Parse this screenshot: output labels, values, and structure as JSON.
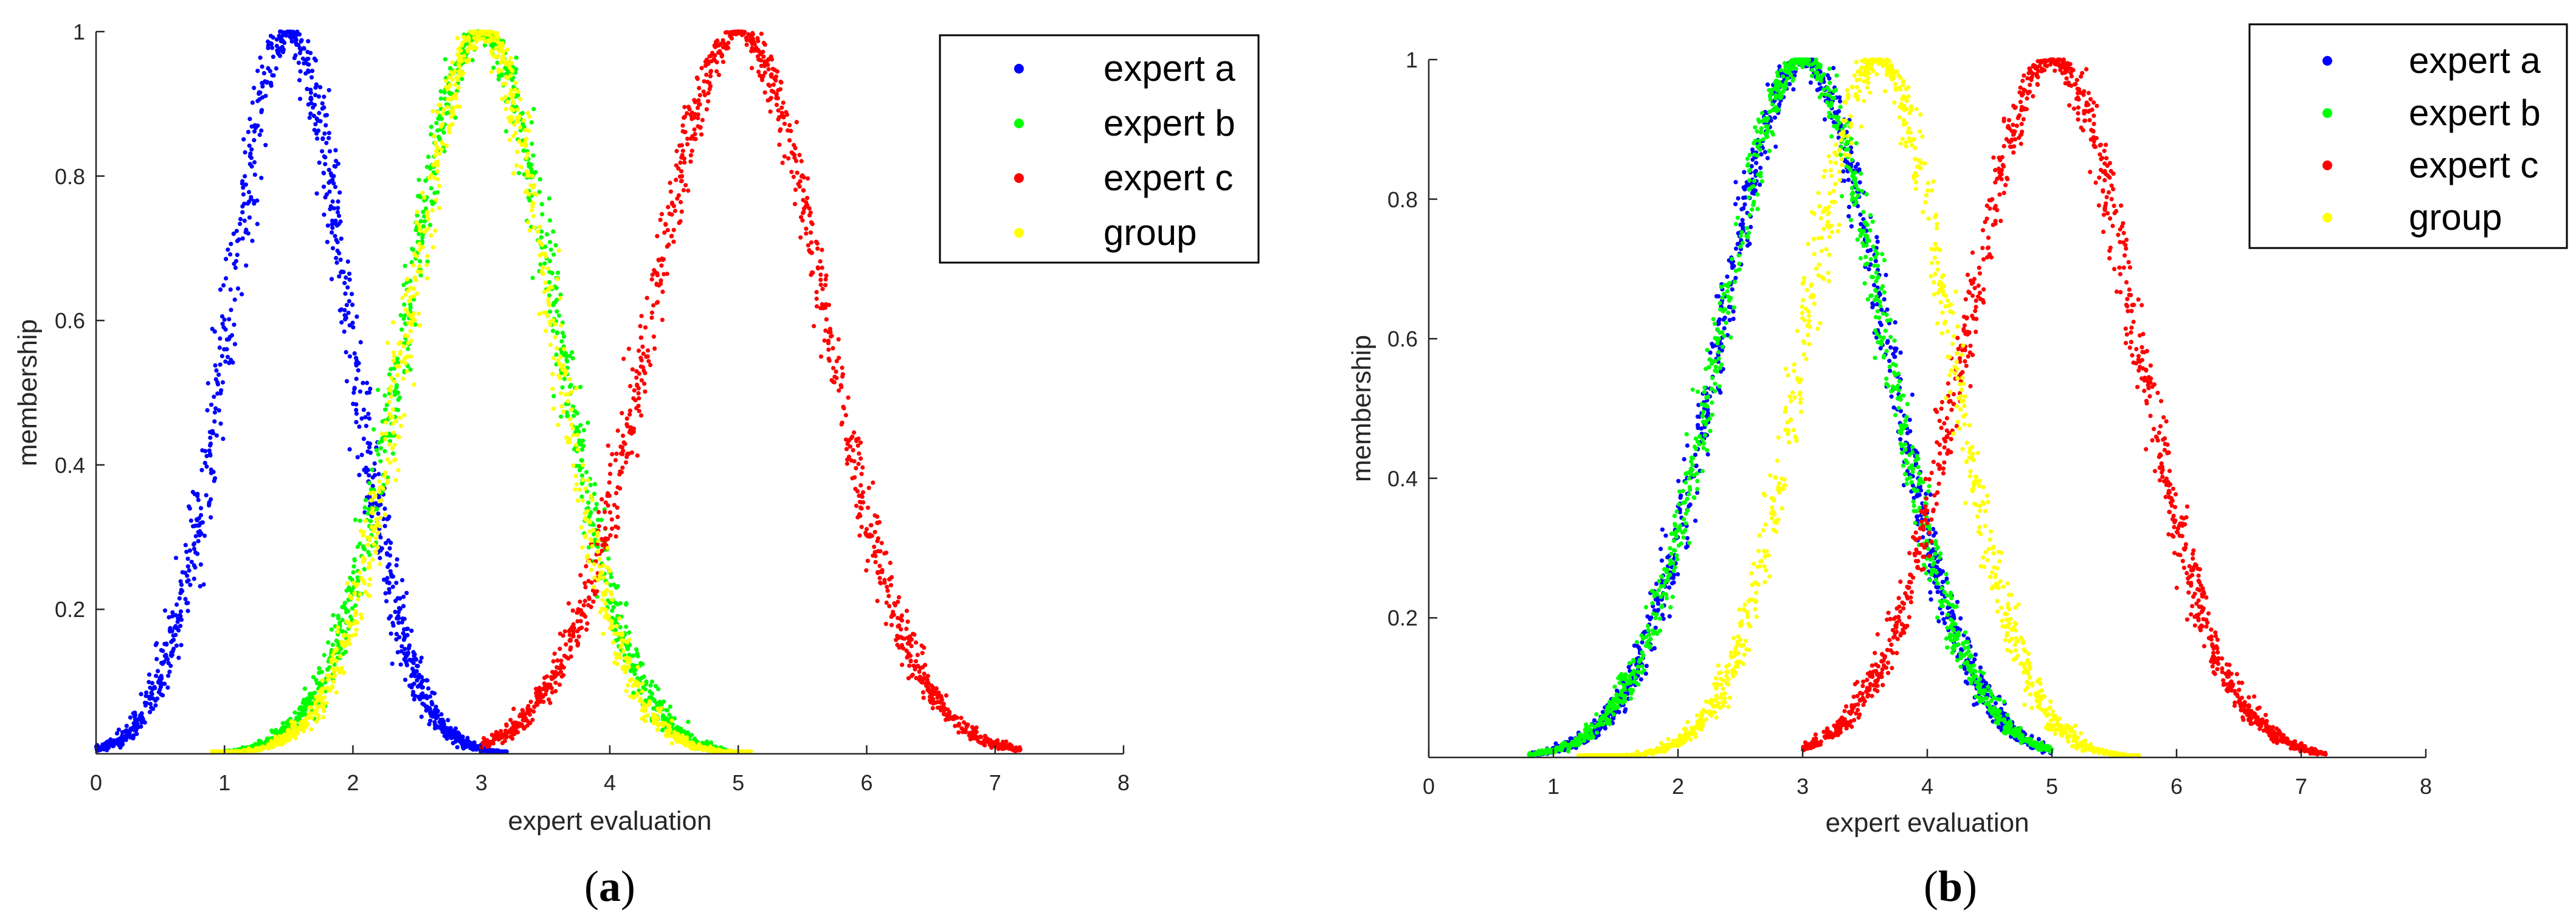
{
  "figure_labels": {
    "a": {
      "open": "(",
      "letter": "a",
      "close": ")"
    },
    "b": {
      "open": "(",
      "letter": "b",
      "close": ")"
    }
  },
  "chart_data": [
    {
      "type": "scatter",
      "panel": "a",
      "xlabel": "expert evaluation",
      "ylabel": "membership",
      "xlim": [
        0,
        8
      ],
      "ylim": [
        0,
        1
      ],
      "xticks": [
        "0",
        "1",
        "2",
        "3",
        "4",
        "5",
        "6",
        "7",
        "8"
      ],
      "yticks": [
        "0.2",
        "0.4",
        "0.6",
        "0.8",
        "1"
      ],
      "grid": false,
      "legend_position": "top-right",
      "series": [
        {
          "name": "expert a",
          "color": "#0000ff",
          "mean": 1.5,
          "sigma": 0.47,
          "x_range": [
            0.0,
            3.2
          ],
          "points": 1200
        },
        {
          "name": "expert b",
          "color": "#00ff00",
          "mean": 3.0,
          "sigma": 0.58,
          "x_range": [
            1.0,
            4.9
          ],
          "points": 1200
        },
        {
          "name": "expert c",
          "color": "#ff0000",
          "mean": 5.0,
          "sigma": 0.68,
          "x_range": [
            3.0,
            7.2
          ],
          "points": 1200
        },
        {
          "name": "group",
          "color": "#ffff00",
          "mean": 3.0,
          "sigma": 0.55,
          "x_range": [
            0.9,
            5.1
          ],
          "points": 1200
        }
      ]
    },
    {
      "type": "scatter",
      "panel": "b",
      "xlabel": "expert evaluation",
      "ylabel": "membership",
      "xlim": [
        0,
        8
      ],
      "ylim": [
        0,
        1
      ],
      "xticks": [
        "0",
        "1",
        "2",
        "3",
        "4",
        "5",
        "6",
        "7",
        "8"
      ],
      "yticks": [
        "0.2",
        "0.4",
        "0.6",
        "0.8",
        "1"
      ],
      "grid": false,
      "legend_position": "top-right",
      "series": [
        {
          "name": "expert a",
          "color": "#0000ff",
          "mean": 3.0,
          "sigma": 0.66,
          "x_range": [
            0.8,
            5.0
          ],
          "points": 1200
        },
        {
          "name": "expert b",
          "color": "#00ff00",
          "mean": 3.0,
          "sigma": 0.66,
          "x_range": [
            0.8,
            5.0
          ],
          "points": 1200
        },
        {
          "name": "expert c",
          "color": "#ff0000",
          "mean": 5.0,
          "sigma": 0.68,
          "x_range": [
            3.0,
            7.2
          ],
          "points": 1200
        },
        {
          "name": "group",
          "color": "#ffff00",
          "mean": 3.6,
          "sigma": 0.58,
          "x_range": [
            1.2,
            5.7
          ],
          "points": 1200
        }
      ]
    }
  ]
}
